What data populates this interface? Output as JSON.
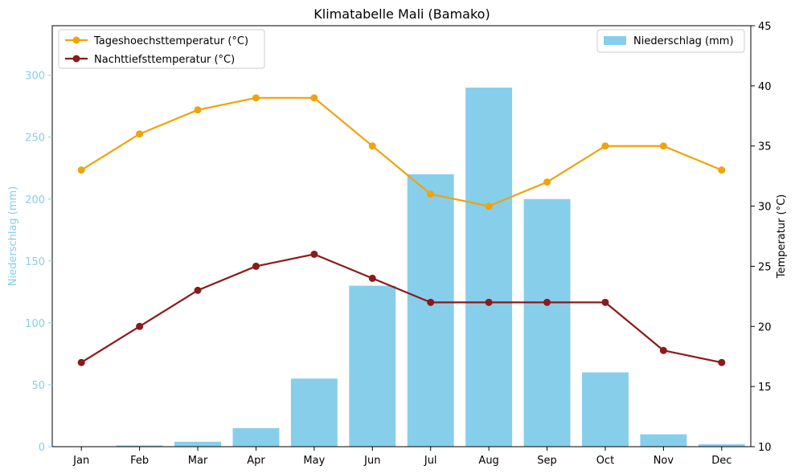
{
  "chart_data": {
    "type": "bar+line",
    "title": "Klimatabelle Mali (Bamako)",
    "categories": [
      "Jan",
      "Feb",
      "Mar",
      "Apr",
      "May",
      "Jun",
      "Jul",
      "Aug",
      "Sep",
      "Oct",
      "Nov",
      "Dec"
    ],
    "left_axis": {
      "label": "Niederschlag (mm)",
      "ticks": [
        0,
        50,
        100,
        150,
        200,
        250,
        300
      ],
      "ylim": [
        0,
        340
      ],
      "color": "#87ceeb"
    },
    "right_axis": {
      "label": "Temperatur (°C)",
      "ticks": [
        10,
        15,
        20,
        25,
        30,
        35,
        40,
        45
      ],
      "ylim": [
        10,
        45
      ]
    },
    "series": [
      {
        "name": "Niederschlag (mm)",
        "kind": "bar",
        "axis": "left",
        "color": "#87ceeb",
        "values": [
          0,
          1,
          4,
          15,
          55,
          130,
          220,
          290,
          200,
          60,
          10,
          2
        ]
      },
      {
        "name": "Tageshoechsttemperatur (°C)",
        "kind": "line",
        "axis": "right",
        "color": "#f0a30a",
        "values": [
          33,
          36,
          38,
          39,
          39,
          35,
          31,
          30,
          32,
          35,
          35,
          33
        ]
      },
      {
        "name": "Nachttiefsttemperatur (°C)",
        "kind": "line",
        "axis": "right",
        "color": "#8b1a1a",
        "values": [
          17,
          20,
          23,
          25,
          26,
          24,
          22,
          22,
          22,
          22,
          18,
          17
        ]
      }
    ],
    "legend_lines_position": "top-left",
    "legend_bars_position": "top-right",
    "grid": false
  }
}
